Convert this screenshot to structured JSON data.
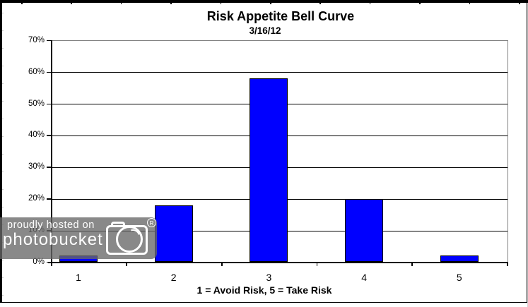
{
  "chart_data": {
    "type": "bar",
    "title": "Risk Appetite Bell Curve",
    "subtitle": "3/16/12",
    "categories": [
      "1",
      "2",
      "3",
      "4",
      "5"
    ],
    "values": [
      2,
      18,
      58,
      20,
      2
    ],
    "xlabel": "1 = Avoid Risk, 5 = Take Risk",
    "ylabel": "",
    "ylim": [
      0,
      70
    ],
    "ytick_step": 10,
    "ytick_labels": [
      "70%",
      "60%",
      "50%",
      "40%",
      "30%",
      "20%",
      "10%",
      "0%"
    ],
    "grid": true,
    "legend": false,
    "bar_color": "#0000ff",
    "bar_border_color": "#000000",
    "gridline_color": "#000000",
    "plot_border_color": "#808080",
    "axis_color": "#000000",
    "background": "#ffffff"
  },
  "watermark": {
    "line1": "proudly hosted on",
    "brand": "photobucket",
    "registered": "®",
    "icon": "camera-icon",
    "bg_color": "#8a8a8a",
    "text_color": "#ffffff"
  }
}
